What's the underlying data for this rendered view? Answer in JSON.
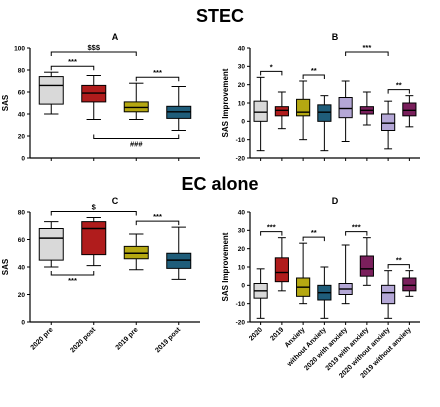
{
  "section_titles": {
    "top": "STEC",
    "bottom": "EC alone"
  },
  "bottom_left_xticks": [
    "2020 pre",
    "2020 post",
    "2019 pre",
    "2019 post"
  ],
  "bottom_right_xticks": [
    "2020",
    "2019",
    "Anxiety",
    "without Anxiety",
    "2020 with anxiety",
    "2019 with anxiety",
    "2020 without anxiety",
    "2019 without anxiety"
  ],
  "chart_data": [
    {
      "panel": "A",
      "type": "box",
      "title": "A",
      "ylabel": "SAS",
      "ylim": [
        0,
        100
      ],
      "yticks": [
        0,
        20,
        40,
        60,
        80,
        100
      ],
      "categories": [
        "2020 pre",
        "2020 post",
        "2019 pre",
        "2019 post"
      ],
      "boxes": [
        {
          "min": 40,
          "q1": 49,
          "median": 66,
          "q3": 74,
          "max": 78,
          "color": "#d9d9d9"
        },
        {
          "min": 35,
          "q1": 51,
          "median": 59,
          "q3": 66,
          "max": 75,
          "color": "#b01c1c"
        },
        {
          "min": 35,
          "q1": 42,
          "median": 46,
          "q3": 51,
          "max": 68,
          "color": "#b5a812"
        },
        {
          "min": 25,
          "q1": 36,
          "median": 42,
          "q3": 47,
          "max": 65,
          "color": "#1f5d7a"
        }
      ],
      "annotations": [
        {
          "label": "$$$",
          "from": 0,
          "to": 2,
          "side": "top"
        },
        {
          "label": "***",
          "from": 0,
          "to": 1,
          "side": "top"
        },
        {
          "label": "***",
          "from": 2,
          "to": 3,
          "side": "top"
        },
        {
          "label": "###",
          "from": 1,
          "to": 3,
          "side": "bottom"
        }
      ]
    },
    {
      "panel": "B",
      "type": "box",
      "title": "B",
      "ylabel": "SAS Improvement",
      "ylim": [
        -20,
        40
      ],
      "yticks": [
        -20,
        -10,
        0,
        10,
        20,
        30,
        40
      ],
      "categories": [
        "2020",
        "2019",
        "Anxiety",
        "without Anxiety",
        "2020 with anxiety",
        "2019 with anxiety",
        "2020 without anxiety",
        "2019 without anxiety"
      ],
      "boxes": [
        {
          "min": -16,
          "q1": 0,
          "median": 5,
          "q3": 11,
          "max": 24,
          "color": "#d9d9d9"
        },
        {
          "min": -4,
          "q1": 3,
          "median": 6,
          "q3": 8,
          "max": 16,
          "color": "#b01c1c"
        },
        {
          "min": -10,
          "q1": 3,
          "median": 5,
          "q3": 12,
          "max": 22,
          "color": "#b5a812"
        },
        {
          "min": -16,
          "q1": 0,
          "median": 5,
          "q3": 9,
          "max": 14,
          "color": "#1f5d7a"
        },
        {
          "min": -11,
          "q1": 2,
          "median": 7,
          "q3": 13,
          "max": 22,
          "color": "#b4a7d6"
        },
        {
          "min": -2,
          "q1": 4,
          "median": 6,
          "q3": 8,
          "max": 16,
          "color": "#7a1f5c"
        },
        {
          "min": -15,
          "q1": -5,
          "median": -1,
          "q3": 4,
          "max": 11,
          "color": "#b4a7d6"
        },
        {
          "min": -3,
          "q1": 3,
          "median": 6,
          "q3": 10,
          "max": 14,
          "color": "#7a1f5c"
        }
      ],
      "annotations": [
        {
          "label": "*",
          "from": 0,
          "to": 1,
          "side": "top"
        },
        {
          "label": "**",
          "from": 2,
          "to": 3,
          "side": "top"
        },
        {
          "label": "***",
          "from": 4,
          "to": 6,
          "side": "top"
        },
        {
          "label": "**",
          "from": 6,
          "to": 7,
          "side": "top"
        }
      ]
    },
    {
      "panel": "C",
      "type": "box",
      "title": "C",
      "ylabel": "SAS",
      "ylim": [
        0,
        80
      ],
      "yticks": [
        0,
        20,
        40,
        60,
        80
      ],
      "categories": [
        "2020 pre",
        "2020 post",
        "2019 pre",
        "2019 post"
      ],
      "boxes": [
        {
          "min": 40,
          "q1": 45,
          "median": 61,
          "q3": 68,
          "max": 73,
          "color": "#d9d9d9"
        },
        {
          "min": 41,
          "q1": 49,
          "median": 68,
          "q3": 73,
          "max": 76,
          "color": "#b01c1c"
        },
        {
          "min": 38,
          "q1": 46,
          "median": 50,
          "q3": 55,
          "max": 64,
          "color": "#b5a812"
        },
        {
          "min": 31,
          "q1": 39,
          "median": 45,
          "q3": 50,
          "max": 69,
          "color": "#1f5d7a"
        }
      ],
      "annotations": [
        {
          "label": "$",
          "from": 0,
          "to": 2,
          "side": "top"
        },
        {
          "label": "***",
          "from": 2,
          "to": 3,
          "side": "top"
        },
        {
          "label": "***",
          "from": 0,
          "to": 1,
          "side": "bottom"
        }
      ]
    },
    {
      "panel": "D",
      "type": "box",
      "title": "D",
      "ylabel": "SAS Improvement",
      "ylim": [
        -20,
        40
      ],
      "yticks": [
        -20,
        -10,
        0,
        10,
        20,
        30,
        40
      ],
      "categories": [
        "2020",
        "2019",
        "Anxiety",
        "without Anxiety",
        "2020 with anxiety",
        "2019 with anxiety",
        "2020 without anxiety",
        "2019 without anxiety"
      ],
      "boxes": [
        {
          "min": -18,
          "q1": -7,
          "median": -3,
          "q3": 1,
          "max": 9,
          "color": "#d9d9d9"
        },
        {
          "min": -3,
          "q1": 2,
          "median": 7,
          "q3": 15,
          "max": 26,
          "color": "#b01c1c"
        },
        {
          "min": -10,
          "q1": -6,
          "median": -1,
          "q3": 4,
          "max": 23,
          "color": "#b5a812"
        },
        {
          "min": -18,
          "q1": -8,
          "median": -4,
          "q3": 0,
          "max": 10,
          "color": "#1f5d7a"
        },
        {
          "min": -10,
          "q1": -5,
          "median": -2,
          "q3": 1,
          "max": 22,
          "color": "#b4a7d6"
        },
        {
          "min": 0,
          "q1": 5,
          "median": 9,
          "q3": 16,
          "max": 26,
          "color": "#7a1f5c"
        },
        {
          "min": -18,
          "q1": -10,
          "median": -4,
          "q3": 0,
          "max": 8,
          "color": "#b4a7d6"
        },
        {
          "min": -6,
          "q1": -3,
          "median": 0,
          "q3": 4,
          "max": 8,
          "color": "#7a1f5c"
        }
      ],
      "annotations": [
        {
          "label": "***",
          "from": 0,
          "to": 1,
          "side": "top"
        },
        {
          "label": "**",
          "from": 2,
          "to": 3,
          "side": "top"
        },
        {
          "label": "***",
          "from": 4,
          "to": 5,
          "side": "top"
        },
        {
          "label": "**",
          "from": 6,
          "to": 7,
          "side": "top"
        }
      ]
    }
  ]
}
